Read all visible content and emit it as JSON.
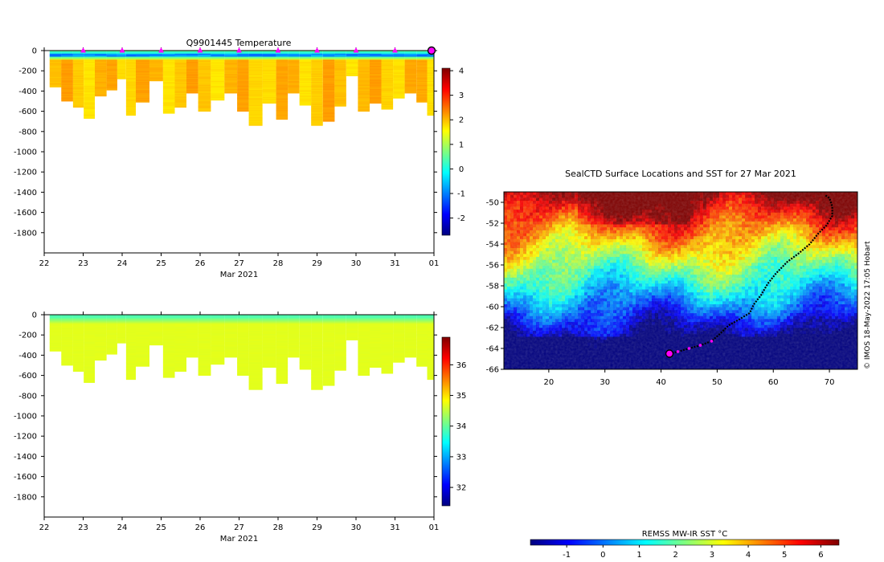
{
  "chart_data": [
    {
      "type": "heatmap",
      "title": "Q9901445  Temperature",
      "xlabel": "Mar 2021",
      "ylabel": "",
      "xticks": [
        "22",
        "23",
        "24",
        "25",
        "26",
        "27",
        "28",
        "29",
        "30",
        "31",
        "01"
      ],
      "xlim": [
        22,
        32
      ],
      "ylim": [
        -2000,
        0
      ],
      "yticks": [
        0,
        -200,
        -400,
        -600,
        -800,
        -1000,
        -1200,
        -1400,
        -1600,
        -1800
      ],
      "colorbar": {
        "ticks": [
          4,
          3,
          2,
          1,
          0,
          -1,
          -2
        ],
        "range": [
          -2.7,
          4.1
        ]
      },
      "profile_markers_x": [
        23,
        24,
        25,
        26,
        27,
        28,
        29,
        30,
        31
      ],
      "last_profile_x": 32,
      "surface_value": 0.2,
      "mixed_layer_value": -1.2,
      "deep_value": 1.9,
      "columns": [
        {
          "x": 22.28,
          "depth": -360
        },
        {
          "x": 22.6,
          "depth": -500
        },
        {
          "x": 22.88,
          "depth": -560
        },
        {
          "x": 23.15,
          "depth": -670
        },
        {
          "x": 23.45,
          "depth": -450
        },
        {
          "x": 23.75,
          "depth": -390
        },
        {
          "x": 24.0,
          "depth": -280
        },
        {
          "x": 24.2,
          "depth": -640
        },
        {
          "x": 24.5,
          "depth": -510
        },
        {
          "x": 24.9,
          "depth": -300
        },
        {
          "x": 25.2,
          "depth": -620
        },
        {
          "x": 25.5,
          "depth": -560
        },
        {
          "x": 25.8,
          "depth": -420
        },
        {
          "x": 26.1,
          "depth": -600
        },
        {
          "x": 26.45,
          "depth": -490
        },
        {
          "x": 26.8,
          "depth": -420
        },
        {
          "x": 27.1,
          "depth": -600
        },
        {
          "x": 27.4,
          "depth": -740
        },
        {
          "x": 27.8,
          "depth": -520
        },
        {
          "x": 28.1,
          "depth": -680
        },
        {
          "x": 28.4,
          "depth": -420
        },
        {
          "x": 28.7,
          "depth": -540
        },
        {
          "x": 29.0,
          "depth": -740
        },
        {
          "x": 29.3,
          "depth": -700
        },
        {
          "x": 29.6,
          "depth": -550
        },
        {
          "x": 29.9,
          "depth": -250
        },
        {
          "x": 30.2,
          "depth": -600
        },
        {
          "x": 30.5,
          "depth": -520
        },
        {
          "x": 30.8,
          "depth": -580
        },
        {
          "x": 31.1,
          "depth": -470
        },
        {
          "x": 31.4,
          "depth": -420
        },
        {
          "x": 31.7,
          "depth": -510
        },
        {
          "x": 31.95,
          "depth": -640
        }
      ]
    },
    {
      "type": "heatmap",
      "title": "",
      "xlabel": "Mar 2021",
      "ylabel": "",
      "xticks": [
        "22",
        "23",
        "24",
        "25",
        "26",
        "27",
        "28",
        "29",
        "30",
        "31",
        "01"
      ],
      "xlim": [
        22,
        32
      ],
      "ylim": [
        -2000,
        0
      ],
      "yticks": [
        0,
        -200,
        -400,
        -600,
        -800,
        -1000,
        -1200,
        -1400,
        -1600,
        -1800
      ],
      "colorbar": {
        "ticks": [
          36,
          35,
          34,
          33,
          32
        ],
        "range": [
          31.4,
          36.9
        ]
      },
      "surface_value": 33.9,
      "deep_value": 34.7,
      "columns": [
        {
          "x": 22.28,
          "depth": -360
        },
        {
          "x": 22.6,
          "depth": -500
        },
        {
          "x": 22.88,
          "depth": -560
        },
        {
          "x": 23.15,
          "depth": -670
        },
        {
          "x": 23.45,
          "depth": -450
        },
        {
          "x": 23.75,
          "depth": -390
        },
        {
          "x": 24.0,
          "depth": -280
        },
        {
          "x": 24.2,
          "depth": -640
        },
        {
          "x": 24.5,
          "depth": -510
        },
        {
          "x": 24.9,
          "depth": -300
        },
        {
          "x": 25.2,
          "depth": -620
        },
        {
          "x": 25.5,
          "depth": -560
        },
        {
          "x": 25.8,
          "depth": -420
        },
        {
          "x": 26.1,
          "depth": -600
        },
        {
          "x": 26.45,
          "depth": -490
        },
        {
          "x": 26.8,
          "depth": -420
        },
        {
          "x": 27.1,
          "depth": -600
        },
        {
          "x": 27.4,
          "depth": -740
        },
        {
          "x": 27.8,
          "depth": -520
        },
        {
          "x": 28.1,
          "depth": -680
        },
        {
          "x": 28.4,
          "depth": -420
        },
        {
          "x": 28.7,
          "depth": -540
        },
        {
          "x": 29.0,
          "depth": -740
        },
        {
          "x": 29.3,
          "depth": -700
        },
        {
          "x": 29.6,
          "depth": -550
        },
        {
          "x": 29.9,
          "depth": -250
        },
        {
          "x": 30.2,
          "depth": -600
        },
        {
          "x": 30.5,
          "depth": -520
        },
        {
          "x": 30.8,
          "depth": -580
        },
        {
          "x": 31.1,
          "depth": -470
        },
        {
          "x": 31.4,
          "depth": -420
        },
        {
          "x": 31.7,
          "depth": -510
        },
        {
          "x": 31.95,
          "depth": -640
        }
      ]
    },
    {
      "type": "heatmap",
      "title": "SealCTD Surface Locations and SST for 27 Mar 2021",
      "xlabel": "",
      "ylabel": "",
      "xlim": [
        12,
        75
      ],
      "ylim": [
        -66,
        -49
      ],
      "xticks": [
        20,
        30,
        40,
        50,
        60,
        70
      ],
      "yticks": [
        -50,
        -52,
        -54,
        -56,
        -58,
        -60,
        -62,
        -64,
        -66
      ],
      "colorbar": {
        "label": "REMSS MW-IR SST °C",
        "ticks": [
          -1,
          0,
          1,
          2,
          3,
          4,
          5,
          6
        ],
        "range": [
          -2,
          6.5
        ]
      },
      "track": [
        [
          41.5,
          -64.5
        ],
        [
          43,
          -64.3
        ],
        [
          45,
          -64
        ],
        [
          47,
          -63.7
        ],
        [
          49,
          -63.3
        ],
        [
          50.5,
          -62.6
        ],
        [
          52,
          -61.8
        ],
        [
          54,
          -61.2
        ],
        [
          55.8,
          -60.6
        ],
        [
          56.5,
          -59.8
        ],
        [
          57.8,
          -58.9
        ],
        [
          59,
          -57.8
        ],
        [
          60.5,
          -56.8
        ],
        [
          62.5,
          -55.7
        ],
        [
          64.5,
          -54.9
        ],
        [
          66.5,
          -54
        ],
        [
          68,
          -53
        ],
        [
          69.5,
          -52.2
        ],
        [
          70.5,
          -51.3
        ],
        [
          70.5,
          -50.4
        ],
        [
          70,
          -49.6
        ],
        [
          69.2,
          -49.3
        ]
      ],
      "profile_positions": [
        [
          43,
          -64.3
        ],
        [
          45,
          -64
        ],
        [
          47,
          -63.7
        ],
        [
          49,
          -63.3
        ]
      ],
      "start_position": [
        41.5,
        -64.5
      ],
      "credit": "© IMOS 18-May-2022 17:05 Hobart"
    }
  ],
  "colors": {
    "jet": [
      "#00007f",
      "#0000ff",
      "#007fff",
      "#00ffff",
      "#7fff7f",
      "#ffff00",
      "#ff7f00",
      "#ff0000",
      "#7f0000"
    ],
    "marker": "#ff00ff",
    "track": "#000000"
  }
}
